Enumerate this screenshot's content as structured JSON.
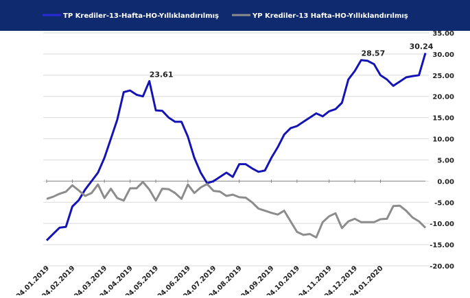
{
  "chart_data": {
    "type": "line",
    "categories": [
      "04.01.2019",
      null,
      null,
      null,
      "04.02.2019",
      null,
      null,
      null,
      null,
      "04.03.2019",
      null,
      null,
      null,
      "04.04.2019",
      null,
      null,
      null,
      "04.05.2019",
      null,
      null,
      null,
      null,
      "04.06.2019",
      null,
      null,
      null,
      "04.07.2019",
      null,
      null,
      null,
      "04.08.2019",
      null,
      null,
      null,
      null,
      "04.09.2019",
      null,
      null,
      null,
      "04.10.2019",
      null,
      null,
      null,
      null,
      "04.11.2019",
      null,
      null,
      null,
      "04.12.2019",
      null,
      null,
      null,
      "04.01.2020",
      null,
      null,
      null,
      null,
      null,
      null,
      null
    ],
    "series": [
      {
        "name": "TP Krediler-13-Hafta-HO-Yıllıklandırılmış",
        "color": "#1414b4",
        "labeled_points": [
          16,
          49,
          59
        ],
        "values": [
          -14,
          -12.5,
          -11,
          -10.8,
          -6,
          -4.5,
          -2,
          0,
          2,
          5.5,
          10,
          14.5,
          21,
          21.4,
          20.4,
          20,
          23.61,
          16.7,
          16.6,
          15,
          14,
          14,
          10.5,
          5.5,
          2,
          -0.5,
          0,
          1,
          2,
          1,
          4,
          4,
          3,
          2.2,
          2.5,
          5.5,
          8,
          11,
          12.5,
          13,
          14,
          15,
          16,
          15.3,
          16.5,
          17,
          18.5,
          24,
          26,
          28.57,
          28.4,
          27.6,
          25,
          24,
          22.5,
          23.5,
          24.5,
          24.8,
          25,
          30.24
        ]
      },
      {
        "name": "YP Krediler-13 Hafta-HO-Yıllıklandırılmış",
        "color": "#8c8c8c",
        "values": [
          -4.2,
          -3.7,
          -3,
          -2.5,
          -1,
          -2.2,
          -3.5,
          -2.8,
          -0.8,
          -4,
          -1.8,
          -4,
          -4.6,
          -1.7,
          -1.7,
          -0.2,
          -2,
          -4.6,
          -1.8,
          -1.9,
          -2.8,
          -4.2,
          -0.8,
          -2.8,
          -1.5,
          -0.7,
          -2.3,
          -2.5,
          -3.5,
          -3.2,
          -3.8,
          -3.9,
          -5,
          -6.5,
          -7,
          -7.5,
          -7.9,
          -7,
          -9.5,
          -12,
          -12.7,
          -12.5,
          -13.3,
          -9.7,
          -8.3,
          -7.6,
          -11.1,
          -9.5,
          -8.9,
          -9.7,
          -9.7,
          -9.7,
          -9,
          -8.9,
          -5.9,
          -5.8,
          -7,
          -8.6,
          -9.5,
          -11
        ]
      }
    ],
    "ylim": [
      -20,
      35
    ],
    "yticks": [
      {
        "value": -20,
        "label": "-20.00"
      },
      {
        "value": -15,
        "label": "-15.00"
      },
      {
        "value": -10,
        "label": "-10.00"
      },
      {
        "value": -5,
        "label": "-5.00"
      },
      {
        "value": 0,
        "label": "0.00"
      },
      {
        "value": 5,
        "label": "5.00"
      },
      {
        "value": 10,
        "label": "10.00"
      },
      {
        "value": 15,
        "label": "15.00"
      },
      {
        "value": 20,
        "label": "20.00"
      },
      {
        "value": 25,
        "label": "25.00"
      },
      {
        "value": 30,
        "label": "30.00"
      },
      {
        "value": 35,
        "label": "35.00"
      }
    ],
    "grid": true
  }
}
